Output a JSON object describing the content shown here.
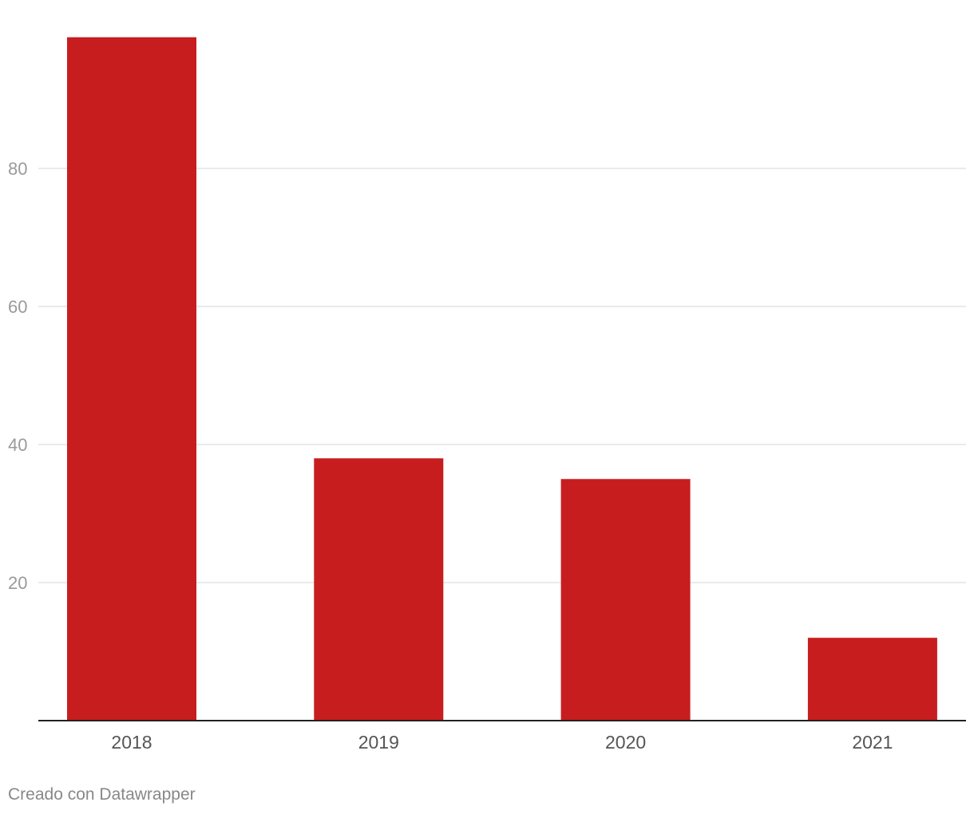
{
  "chart_data": {
    "type": "bar",
    "categories": [
      "2018",
      "2019",
      "2020",
      "2021"
    ],
    "values": [
      99,
      38,
      35,
      12
    ],
    "yticks": [
      20,
      40,
      60,
      80
    ],
    "ylim": [
      0,
      99
    ],
    "grid": true,
    "bar_color": "#c81d1e",
    "title": "",
    "xlabel": "",
    "ylabel": ""
  },
  "footer": {
    "credit": "Creado con Datawrapper"
  },
  "colors": {
    "grid": "#e3e3e3",
    "axis": "#222222",
    "ytick_text": "#9a9a9a",
    "xtick_text": "#555555"
  }
}
